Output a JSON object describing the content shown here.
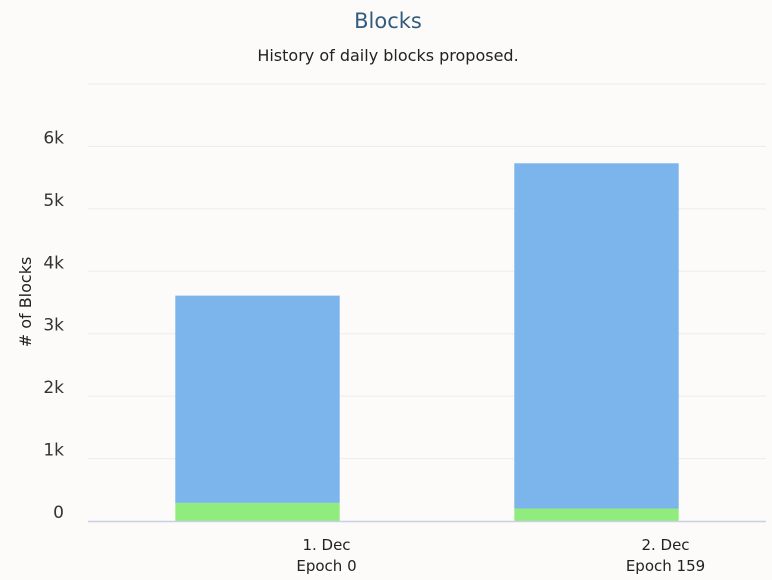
{
  "chart_data": {
    "type": "bar",
    "stacked": true,
    "title": "Blocks",
    "subtitle": "History of daily blocks proposed.",
    "xlabel": "",
    "ylabel": "# of Blocks",
    "ylim": [
      0,
      7000
    ],
    "yticks": [
      0,
      1000,
      2000,
      3000,
      4000,
      5000,
      6000
    ],
    "ytick_labels": [
      "0",
      "1k",
      "2k",
      "3k",
      "4k",
      "5k",
      "6k"
    ],
    "grid": true,
    "categories": [
      {
        "line1": "1. Dec",
        "line2": "Epoch 0"
      },
      {
        "line1": "2. Dec",
        "line2": "Epoch 159"
      }
    ],
    "series": [
      {
        "color": "#90ed7d",
        "values": [
          290,
          200
        ]
      },
      {
        "color": "#7cb5ec",
        "values": [
          3320,
          5530
        ]
      }
    ]
  }
}
